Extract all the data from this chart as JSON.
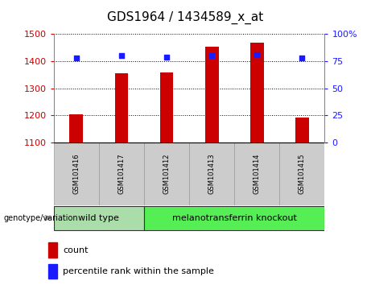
{
  "title": "GDS1964 / 1434589_x_at",
  "samples": [
    "GSM101416",
    "GSM101417",
    "GSM101412",
    "GSM101413",
    "GSM101414",
    "GSM101415"
  ],
  "counts": [
    1205,
    1355,
    1358,
    1455,
    1468,
    1193
  ],
  "percentile_ranks": [
    78,
    80,
    79,
    80,
    81,
    78
  ],
  "ylim_left": [
    1100,
    1500
  ],
  "ylim_right": [
    0,
    100
  ],
  "yticks_left": [
    1100,
    1200,
    1300,
    1400,
    1500
  ],
  "yticks_right": [
    0,
    25,
    50,
    75,
    100
  ],
  "ytick_labels_right": [
    "0",
    "25",
    "50",
    "75",
    "100%"
  ],
  "bar_color": "#cc0000",
  "dot_color": "#1a1aff",
  "bar_bottom": 1100,
  "bar_width": 0.3,
  "groups": [
    {
      "label": "wild type",
      "indices": [
        0,
        1
      ],
      "color": "#aaddaa"
    },
    {
      "label": "melanotransferrin knockout",
      "indices": [
        2,
        3,
        4,
        5
      ],
      "color": "#55ee55"
    }
  ],
  "genotype_label": "genotype/variation",
  "legend_count": "count",
  "legend_percentile": "percentile rank within the sample",
  "tick_label_color_left": "#cc0000",
  "tick_label_color_right": "#1a1aff",
  "background_color": "#ffffff",
  "sample_box_color": "#cccccc",
  "sample_box_edge": "#999999",
  "dot_size": 22,
  "title_fontsize": 11,
  "tick_fontsize": 8,
  "sample_fontsize": 6,
  "group_fontsize": 8,
  "legend_fontsize": 8
}
